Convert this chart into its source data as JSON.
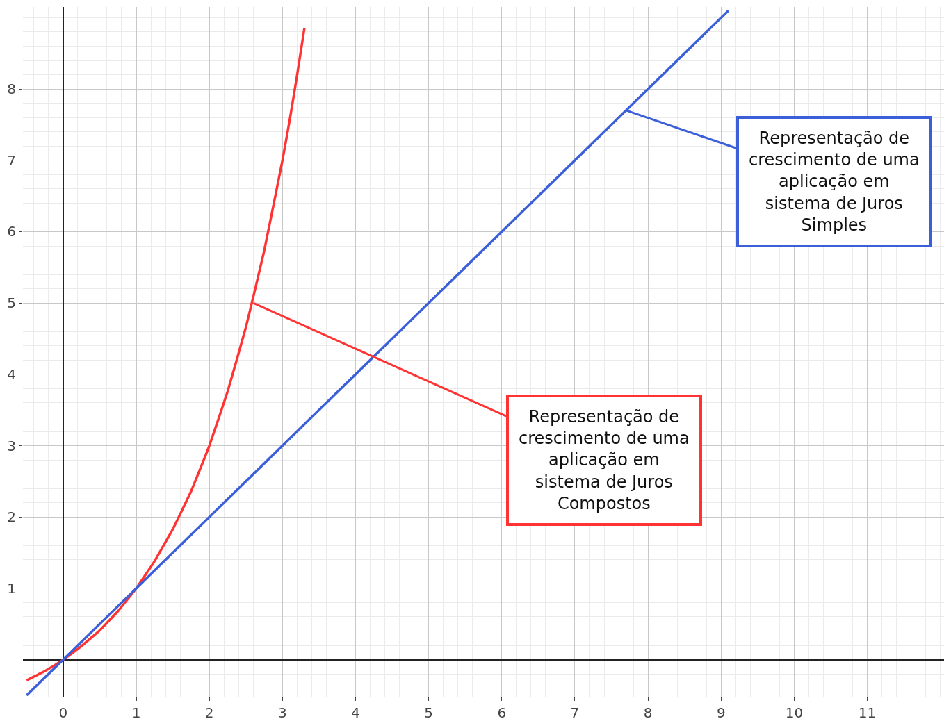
{
  "chart_data": {
    "type": "line",
    "series": [
      {
        "color": "#ff3333",
        "x": [
          -0.5,
          -0.25,
          0,
          0.25,
          0.5,
          0.75,
          1,
          1.25,
          1.5,
          1.75,
          2,
          2.25,
          2.5,
          2.75,
          3,
          3.1,
          3.2,
          3.3
        ],
        "values": [
          -0.29,
          -0.16,
          0,
          0.19,
          0.41,
          0.68,
          1,
          1.38,
          1.83,
          2.36,
          3,
          3.76,
          4.66,
          5.73,
          7,
          7.57,
          8.19,
          8.85
        ]
      },
      {
        "color": "#3a5fd9",
        "x": [
          -0.5,
          9.1
        ],
        "values": [
          -0.5,
          9.1
        ]
      }
    ],
    "annotations": [
      {
        "text": "Representação de crescimento de uma aplicação em sistema de Juros Compostos",
        "x": 2.6,
        "y": 5.0
      },
      {
        "text": "Representação de crescimento de uma aplicação em sistema de Juros Simples",
        "x": 7.7,
        "y": 7.7
      }
    ],
    "xlim": [
      -0.55,
      12.05
    ],
    "ylim": [
      -0.52,
      9.15
    ],
    "xticks": [
      0,
      1,
      2,
      3,
      4,
      5,
      6,
      7,
      8,
      9,
      10,
      11
    ],
    "yticks": [
      1,
      2,
      3,
      4,
      5,
      6,
      7,
      8
    ],
    "grid": true,
    "marker": "none",
    "line_style": "solid"
  }
}
